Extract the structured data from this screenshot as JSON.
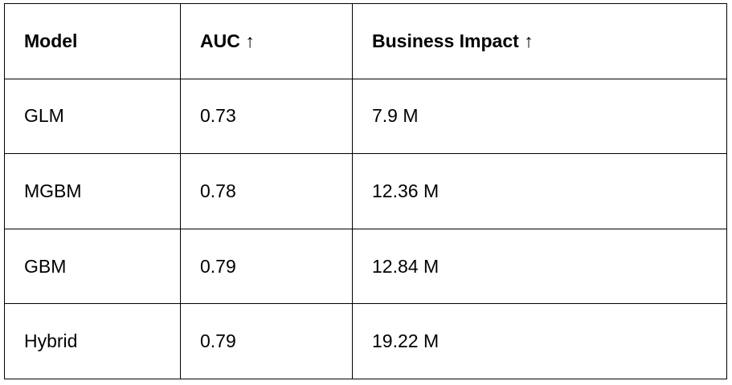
{
  "table": {
    "headers": [
      "Model",
      "AUC ↑",
      "Business Impact ↑"
    ],
    "rows": [
      [
        "GLM",
        "0.73",
        "7.9 M"
      ],
      [
        "MGBM",
        "0.78",
        "12.36 M"
      ],
      [
        "GBM",
        "0.79",
        "12.84 M"
      ],
      [
        "Hybrid",
        "0.79",
        "19.22 M"
      ]
    ]
  }
}
